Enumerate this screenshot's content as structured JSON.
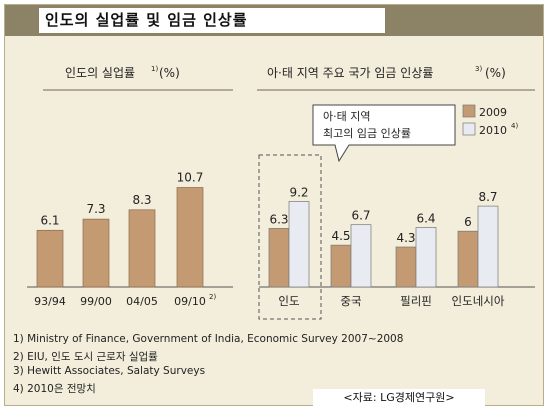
{
  "title": "인도의 실업률 및 임금 인상률",
  "chart_data": [
    {
      "type": "bar",
      "title": "인도의 실업률",
      "title_sup": "1)",
      "unit": "(%)",
      "categories": [
        "93/94",
        "99/00",
        "04/05",
        "09/10"
      ],
      "category_sup": [
        "",
        "",
        "",
        "2)"
      ],
      "values": [
        6.1,
        7.3,
        8.3,
        10.7
      ],
      "value_labels": [
        "6.1",
        "7.3",
        "8.3",
        "10.7"
      ],
      "colors": {
        "bar": "#c49a72"
      }
    },
    {
      "type": "bar",
      "title": "아·태 지역 주요 국가 임금 인상률",
      "title_sup": "3)",
      "unit": "(%)",
      "categories": [
        "인도",
        "중국",
        "필리핀",
        "인도네시아"
      ],
      "series": [
        {
          "name": "2009",
          "name_sup": "",
          "values": [
            6.3,
            4.5,
            4.3,
            6.0
          ],
          "labels": [
            "6.3",
            "4.5",
            "4.3",
            "6"
          ],
          "color": "#c49a72"
        },
        {
          "name": "2010",
          "name_sup": "4)",
          "values": [
            9.2,
            6.7,
            6.4,
            8.7
          ],
          "labels": [
            "9.2",
            "6.7",
            "6.4",
            "8.7"
          ],
          "color": "#e9ebf2"
        }
      ],
      "legend": "top-right",
      "callout": [
        "아·태 지역",
        "최고의 임금 인상률"
      ],
      "highlight_category": "인도"
    }
  ],
  "footnotes": [
    "1) Ministry of Finance, Government of India, Economic Survey 2007~2008",
    "2) EIU, 인도 도시 근로자 실업률",
    "3) Hewitt Associates, Salaty Surveys",
    "4) 2010은 전망치"
  ],
  "source": "<자료: LG경제연구원>"
}
